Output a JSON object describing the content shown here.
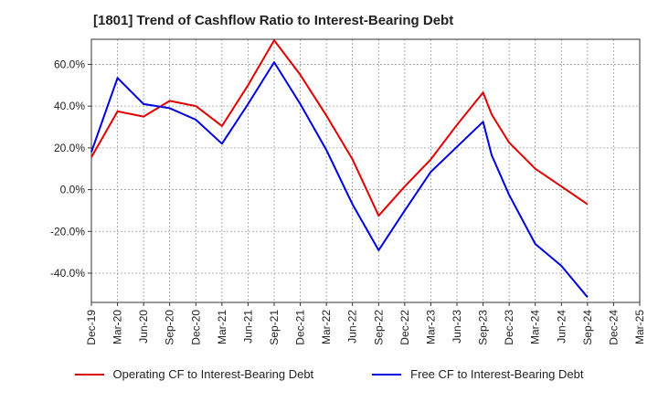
{
  "chart_data": {
    "type": "line",
    "title": "[1801]  Trend of Cashflow Ratio to Interest-Bearing Debt",
    "xlabel": "",
    "ylabel": "",
    "x": [
      "Dec-19",
      "Mar-20",
      "Jun-20",
      "Sep-20",
      "Dec-20",
      "Mar-21",
      "Jun-21",
      "Sep-21",
      "Dec-21",
      "Mar-22",
      "Jun-22",
      "Sep-22",
      "Dec-22",
      "Mar-23",
      "Jun-23",
      "Sep-23",
      "Oct-23",
      "Dec-23",
      "Mar-24",
      "Jun-24",
      "Sep-24"
    ],
    "x_ticks": [
      "Dec-19",
      "Mar-20",
      "Jun-20",
      "Sep-20",
      "Dec-20",
      "Mar-21",
      "Jun-21",
      "Sep-21",
      "Dec-21",
      "Mar-22",
      "Jun-22",
      "Sep-22",
      "Dec-22",
      "Mar-23",
      "Jun-23",
      "Sep-23",
      "Dec-23",
      "Mar-24",
      "Jun-24",
      "Sep-24",
      "Dec-24",
      "Mar-25"
    ],
    "y_ticks": [
      60,
      40,
      20,
      0,
      -20,
      -40
    ],
    "y_tick_labels": [
      "60.0%",
      "40.0%",
      "20.0%",
      "0.0%",
      "-20.0%",
      "-40.0%"
    ],
    "ylim": [
      -54,
      72
    ],
    "grid": true,
    "legend_position": "bottom",
    "series": [
      {
        "name": "Operating CF to Interest-Bearing Debt",
        "color": "#e00000",
        "values": [
          15.5,
          37.5,
          35.0,
          42.5,
          40.0,
          30.5,
          50.0,
          71.5,
          55.0,
          35.5,
          14.5,
          -12.5,
          1.5,
          14.5,
          31.0,
          46.5,
          36.0,
          22.5,
          10.0,
          1.5,
          -7.0
        ],
        "x_index": [
          0,
          1,
          2,
          3,
          4,
          5,
          6,
          7,
          8,
          9,
          10,
          11,
          12,
          13,
          14,
          15,
          15.33,
          16,
          17,
          18,
          19
        ]
      },
      {
        "name": "Free CF to Interest-Bearing Debt",
        "color": "#0000e0",
        "values": [
          18.0,
          53.5,
          41.0,
          39.0,
          33.5,
          22.0,
          41.0,
          61.0,
          41.0,
          19.0,
          -7.0,
          -29.0,
          -10.0,
          8.5,
          20.5,
          32.5,
          16.5,
          -2.5,
          -26.0,
          -36.5,
          -51.5
        ],
        "x_index": [
          0,
          1,
          2,
          3,
          4,
          5,
          6,
          7,
          8,
          9,
          10,
          11,
          12,
          13,
          14,
          15,
          15.33,
          16,
          17,
          18,
          19
        ]
      }
    ]
  }
}
